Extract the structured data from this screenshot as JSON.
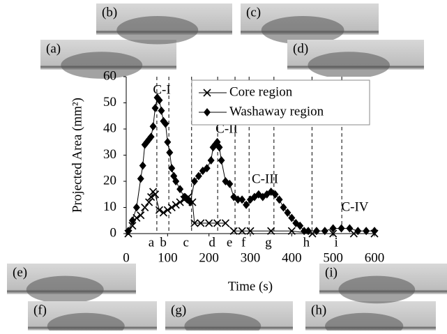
{
  "chart_data": {
    "type": "line",
    "x_label": "Time (s)",
    "y_label": "Projected Area (mm²)",
    "xlim": [
      0,
      600
    ],
    "xticks": [
      0,
      100,
      200,
      300,
      400,
      500,
      600
    ],
    "ylim": [
      0,
      60
    ],
    "yticks": [
      0,
      10,
      20,
      30,
      40,
      50,
      60
    ],
    "grid": false,
    "legend": "top-right",
    "series": [
      {
        "name": "Core region",
        "marker": "x",
        "color": "#000000",
        "x": [
          5,
          15,
          25,
          35,
          45,
          55,
          60,
          65,
          70,
          80,
          90,
          100,
          110,
          120,
          130,
          140,
          150,
          160,
          165,
          180,
          200,
          220,
          240,
          260,
          280,
          300,
          350,
          400,
          450,
          500,
          550,
          600
        ],
        "values": [
          0,
          3,
          6,
          7,
          10,
          12,
          14,
          16,
          15,
          9,
          8,
          9,
          10,
          11,
          12,
          13,
          14,
          12,
          4,
          4,
          4,
          4,
          4,
          1,
          1,
          1,
          1,
          1,
          0,
          0,
          0,
          0
        ]
      },
      {
        "name": "Washaway region",
        "marker": "diamond",
        "color": "#000000",
        "x": [
          5,
          15,
          25,
          35,
          40,
          45,
          50,
          55,
          60,
          65,
          70,
          75,
          80,
          85,
          90,
          95,
          100,
          105,
          110,
          115,
          120,
          130,
          140,
          150,
          155,
          165,
          175,
          185,
          195,
          205,
          210,
          215,
          220,
          225,
          230,
          240,
          250,
          260,
          270,
          280,
          290,
          300,
          310,
          320,
          330,
          340,
          350,
          360,
          370,
          380,
          390,
          400,
          410,
          420,
          430,
          440,
          460,
          480,
          500,
          520,
          540,
          560,
          580,
          600
        ],
        "values": [
          1,
          5,
          10,
          21,
          26,
          34,
          35,
          36,
          37,
          41,
          48,
          52,
          51,
          47,
          43,
          42,
          35,
          31,
          25,
          22,
          20,
          17,
          14,
          13,
          12,
          20,
          22,
          24,
          25,
          28,
          33,
          34,
          35,
          33,
          28,
          20,
          19,
          14,
          13,
          13,
          11,
          13,
          14,
          15,
          14,
          15,
          16,
          15,
          13,
          10,
          8,
          6,
          4,
          3,
          1,
          1,
          1,
          1,
          2,
          2,
          2,
          1,
          1,
          1
        ]
      }
    ],
    "events": [
      {
        "label": "a",
        "x": 74
      },
      {
        "label": "b",
        "x": 103
      },
      {
        "label": "c",
        "x": 158
      },
      {
        "label": "d",
        "x": 221
      },
      {
        "label": "e",
        "x": 263
      },
      {
        "label": "f",
        "x": 297
      },
      {
        "label": "g",
        "x": 357
      },
      {
        "label": "h",
        "x": 449
      },
      {
        "label": "i",
        "x": 521
      }
    ],
    "annotations": [
      "C-I",
      "C-II",
      "C-III",
      "C-IV"
    ]
  },
  "panels": [
    {
      "label": "(a)"
    },
    {
      "label": "(b)"
    },
    {
      "label": "(c)"
    },
    {
      "label": "(d)"
    },
    {
      "label": "(e)"
    },
    {
      "label": "(f)"
    },
    {
      "label": "(g)"
    },
    {
      "label": "(h)"
    },
    {
      "label": "(i)"
    }
  ]
}
